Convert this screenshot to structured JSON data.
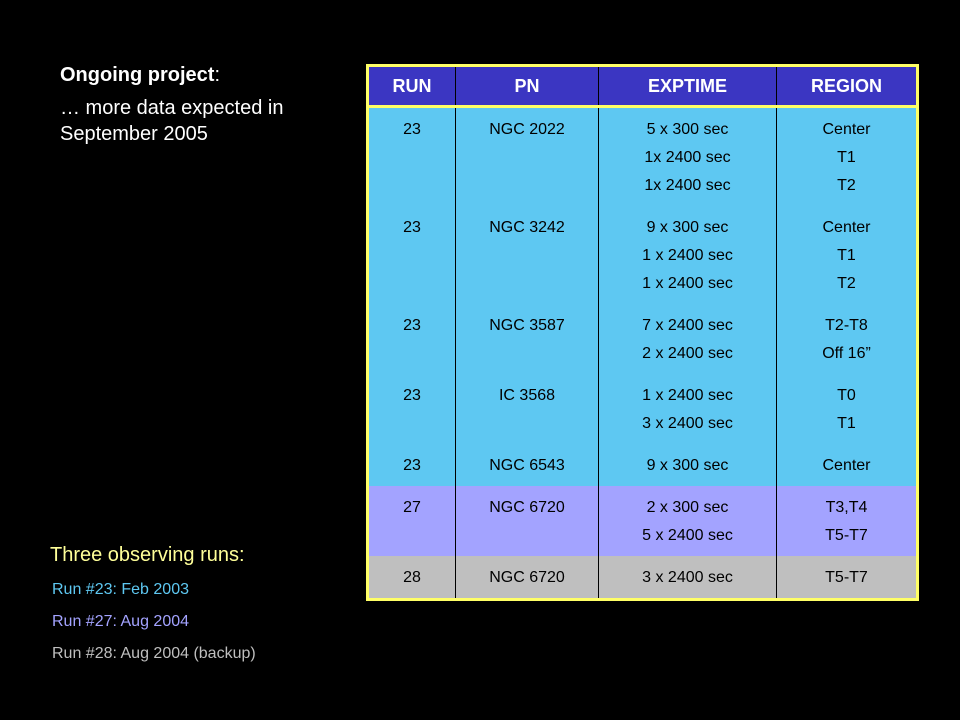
{
  "project": {
    "title_bold": "Ongoing project",
    "title_colon": ":",
    "text": "… more data expected in September 2005"
  },
  "table": {
    "headers": [
      "RUN",
      "PN",
      "EXPTIME",
      "REGION"
    ],
    "rows": [
      {
        "run": "23",
        "pn": "NGC 2022",
        "exptime": [
          "5 x 300 sec",
          "1x 2400 sec",
          "1x 2400 sec"
        ],
        "region": [
          "Center",
          "T1",
          "T2"
        ]
      },
      {
        "run": "23",
        "pn": "NGC 3242",
        "exptime": [
          "9 x 300 sec",
          "1 x 2400 sec",
          "1 x 2400 sec"
        ],
        "region": [
          "Center",
          "T1",
          "T2"
        ]
      },
      {
        "run": "23",
        "pn": "NGC 3587",
        "exptime": [
          "7 x 2400 sec",
          "2 x 2400 sec"
        ],
        "region": [
          "T2-T8",
          "Off 16”"
        ]
      },
      {
        "run": "23",
        "pn": "IC 3568",
        "exptime": [
          "1 x 2400 sec",
          "3 x 2400 sec"
        ],
        "region": [
          "T0",
          "T1"
        ]
      },
      {
        "run": "23",
        "pn": "NGC 6543",
        "exptime": [
          "9 x 300 sec"
        ],
        "region": [
          "Center"
        ]
      },
      {
        "run": "27",
        "pn": "NGC 6720",
        "exptime": [
          "2 x 300 sec",
          "5 x 2400 sec"
        ],
        "region": [
          "T3,T4",
          "T5-T7"
        ]
      },
      {
        "run": "28",
        "pn": "NGC 6720",
        "exptime": [
          "3 x 2400 sec"
        ],
        "region": [
          "T5-T7"
        ]
      }
    ]
  },
  "runs": {
    "title": "Three observing runs:",
    "items": [
      {
        "text": "Run #23: Feb 2003",
        "color": "#5ec8f2"
      },
      {
        "text": "Run #27: Aug 2004",
        "color": "#a3a3ff"
      },
      {
        "text": "Run #28: Aug 2004 (backup)",
        "color": "#bfbfbf"
      }
    ]
  }
}
